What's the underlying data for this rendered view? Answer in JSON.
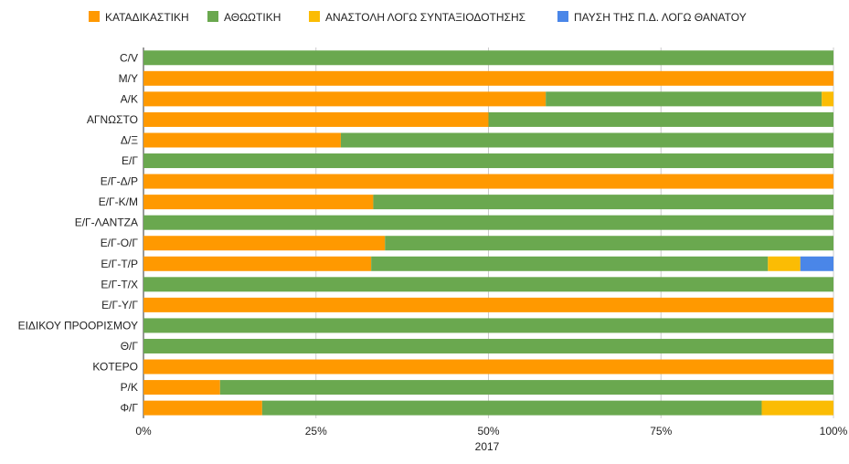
{
  "chart_data": {
    "type": "bar",
    "orientation": "horizontal",
    "stacked": "percent",
    "title": "",
    "xlabel": "2017",
    "ylabel": "",
    "xlim": [
      0,
      100
    ],
    "x_ticks": [
      "0%",
      "25%",
      "50%",
      "75%",
      "100%"
    ],
    "grid": true,
    "legend_position": "top",
    "categories": [
      "C/V",
      "M/Y",
      "A/K",
      "ΑΓΝΩΣΤΟ",
      "Δ/Ξ",
      "Ε/Γ",
      "Ε/Γ-Δ/Ρ",
      "Ε/Γ-Κ/Μ",
      "Ε/Γ-ΛΑΝΤΖΑ",
      "Ε/Γ-Ο/Γ",
      "Ε/Γ-Τ/Ρ",
      "Ε/Γ-Τ/Χ",
      "Ε/Γ-Υ/Γ",
      "ΕΙΔΙΚΟΥ ΠΡΟΟΡΙΣΜΟΥ",
      "Θ/Γ",
      "ΚΟΤΕΡΟ",
      "Ρ/Κ",
      "Φ/Γ"
    ],
    "series": [
      {
        "name": "ΚΑΤΑΔΙΚΑΣΤΙΚΗ",
        "color": "#ff9900",
        "values": [
          0,
          100,
          58.3,
          50,
          28.6,
          0,
          100,
          33.3,
          0,
          35,
          33,
          0,
          100,
          0,
          0,
          100,
          11.1,
          17.2
        ]
      },
      {
        "name": "ΑΘΩΩΤΙΚΗ",
        "color": "#6aa84f",
        "values": [
          100,
          0,
          40,
          50,
          71.4,
          100,
          0,
          66.7,
          100,
          65,
          57.5,
          100,
          0,
          100,
          100,
          0,
          88.9,
          72.4
        ]
      },
      {
        "name": "ΑΝΑΣΤΟΛΗ ΛΟΓΩ ΣΥΝΤΑΞΙΟΔΟΤΗΣΗΣ",
        "color": "#fbbc04",
        "values": [
          0,
          0,
          1.7,
          0,
          0,
          0,
          0,
          0,
          0,
          0,
          4.7,
          0,
          0,
          0,
          0,
          0,
          0,
          10.4
        ]
      },
      {
        "name": "ΠΑΥΣΗ ΤΗΣ Π.Δ. ΛΟΓΩ ΘΑΝΑΤΟΥ",
        "color": "#4a86e8",
        "values": [
          0,
          0,
          0,
          0,
          0,
          0,
          0,
          0,
          0,
          0,
          4.8,
          0,
          0,
          0,
          0,
          0,
          0,
          0
        ]
      }
    ]
  }
}
